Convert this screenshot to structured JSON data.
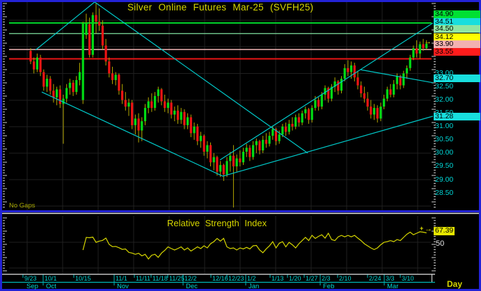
{
  "labels": {
    "no_gaps": "No Gaps",
    "day": "Day"
  },
  "colors": {
    "frame_blue": "#2323d6",
    "grid": "#202020",
    "cyan_line": "#00c8c8",
    "candle_up": "#00dc14",
    "candle_down": "#ee1414",
    "wick": "#b3a600",
    "rsi_line": "#d6d600",
    "axis_text": "#00d4d4",
    "separator_white": "#e6e6e6"
  },
  "chart_data": [
    {
      "type": "candlestick",
      "title": "Silver Online Futures Mar-25 (SVFH25)",
      "period": "Day",
      "y_range": [
        27.9,
        35.7
      ],
      "grid": true,
      "y_ticks": [
        {
          "label": "33.00",
          "value": 33.0
        },
        {
          "label": "32.50",
          "value": 32.5
        },
        {
          "label": "32.00",
          "value": 32.0
        },
        {
          "label": "31.50",
          "value": 31.5
        },
        {
          "label": "31.00",
          "value": 31.0
        },
        {
          "label": "30.50",
          "value": 30.5
        },
        {
          "label": "30.00",
          "value": 30.0
        },
        {
          "label": "29.50",
          "value": 29.5
        },
        {
          "label": "29.00",
          "value": 29.0
        },
        {
          "label": "28.50",
          "value": 28.5
        }
      ],
      "price_badges": [
        {
          "label": "34.90",
          "y": 20,
          "bg": "#00e033"
        },
        {
          "label": "34.51",
          "y": 31,
          "bg": "#18dede"
        },
        {
          "label": "34.50",
          "y": 41,
          "bg": "#8fe6a3"
        },
        {
          "label": "34.12",
          "y": 53,
          "bg": "#ffff00"
        },
        {
          "label": "33.90",
          "y": 63,
          "bg": "#f2b1b1"
        },
        {
          "label": "33.55",
          "y": 74,
          "bg": "#ff1c1c"
        },
        {
          "label": "32.70",
          "y": 112,
          "bg": "#18dede"
        },
        {
          "label": "31.28",
          "y": 167,
          "bg": "#18dede"
        }
      ],
      "h_lines": [
        {
          "price": 34.9,
          "color": "#00d22a",
          "w": 2
        },
        {
          "price": 34.5,
          "color": "#7fe3a0",
          "w": 1.2
        },
        {
          "price": 33.9,
          "color": "#f0b4b4",
          "w": 1.5
        },
        {
          "price": 33.55,
          "color": "#e81414",
          "w": 2
        }
      ],
      "trendlines": [
        {
          "x1": 51,
          "p1": 33.88,
          "x2": 136,
          "p2": 35.69
        },
        {
          "x1": 136,
          "p1": 35.69,
          "x2": 442,
          "p2": 30.0
        },
        {
          "x1": 60,
          "p1": 32.3,
          "x2": 320,
          "p2": 29.13
        },
        {
          "x1": 320,
          "p1": 29.13,
          "x2": 622,
          "p2": 31.39
        },
        {
          "x1": 316,
          "p1": 29.74,
          "x2": 622,
          "p2": 34.9
        },
        {
          "x1": 518,
          "p1": 33.14,
          "x2": 622,
          "p2": 32.65
        }
      ],
      "last_price": "34.12",
      "ohlc": [
        [
          33.85,
          33.95,
          33.35,
          33.45
        ],
        [
          33.45,
          33.6,
          33.0,
          33.15
        ],
        [
          33.15,
          33.75,
          33.05,
          33.6
        ],
        [
          33.6,
          33.7,
          32.9,
          33.05
        ],
        [
          33.05,
          33.15,
          32.35,
          32.5
        ],
        [
          32.5,
          32.95,
          32.3,
          32.8
        ],
        [
          32.8,
          32.9,
          32.2,
          32.35
        ],
        [
          32.35,
          32.6,
          31.9,
          32.1
        ],
        [
          32.1,
          32.5,
          31.8,
          32.4
        ],
        [
          32.4,
          32.55,
          31.7,
          31.85
        ],
        [
          31.85,
          32.2,
          30.35,
          32.05
        ],
        [
          32.05,
          32.6,
          31.9,
          32.45
        ],
        [
          32.45,
          32.8,
          32.2,
          32.65
        ],
        [
          32.65,
          32.75,
          32.15,
          32.3
        ],
        [
          32.3,
          32.9,
          32.2,
          32.75
        ],
        [
          32.75,
          33.4,
          32.55,
          33.05
        ],
        [
          32.0,
          34.95,
          31.85,
          34.9
        ],
        [
          34.45,
          35.25,
          34.3,
          34.9
        ],
        [
          34.85,
          35.1,
          33.6,
          33.7
        ],
        [
          33.7,
          35.3,
          33.6,
          35.2
        ],
        [
          35.2,
          35.65,
          34.5,
          34.95
        ],
        [
          34.95,
          35.45,
          34.6,
          34.8
        ],
        [
          34.8,
          35.0,
          33.9,
          34.05
        ],
        [
          34.05,
          34.3,
          33.3,
          33.45
        ],
        [
          33.45,
          33.6,
          32.85,
          33.0
        ],
        [
          33.0,
          33.25,
          32.6,
          32.75
        ],
        [
          32.75,
          33.05,
          32.55,
          32.95
        ],
        [
          32.95,
          33.0,
          32.2,
          32.35
        ],
        [
          32.35,
          32.6,
          31.85,
          32.0
        ],
        [
          32.0,
          32.3,
          31.6,
          31.75
        ],
        [
          31.75,
          32.05,
          31.4,
          31.9
        ],
        [
          31.9,
          32.0,
          30.9,
          31.05
        ],
        [
          31.05,
          31.45,
          30.7,
          31.3
        ],
        [
          31.3,
          31.5,
          30.4,
          30.85
        ],
        [
          30.85,
          31.35,
          30.45,
          31.2
        ],
        [
          31.2,
          31.85,
          31.05,
          31.7
        ],
        [
          31.7,
          32.1,
          31.5,
          31.95
        ],
        [
          31.95,
          32.25,
          31.55,
          31.7
        ],
        [
          31.7,
          32.3,
          31.6,
          32.15
        ],
        [
          32.15,
          32.5,
          31.9,
          32.4
        ],
        [
          32.4,
          32.45,
          31.8,
          31.95
        ],
        [
          31.95,
          32.2,
          31.55,
          31.7
        ],
        [
          31.7,
          32.05,
          31.5,
          31.9
        ],
        [
          31.9,
          32.0,
          31.3,
          31.45
        ],
        [
          31.45,
          31.75,
          31.2,
          31.6
        ],
        [
          31.6,
          31.8,
          31.1,
          31.25
        ],
        [
          31.25,
          31.7,
          31.1,
          31.55
        ],
        [
          31.55,
          31.65,
          30.9,
          31.05
        ],
        [
          31.05,
          31.5,
          30.9,
          31.35
        ],
        [
          31.35,
          31.45,
          30.6,
          30.75
        ],
        [
          30.75,
          31.15,
          30.5,
          31.0
        ],
        [
          31.0,
          31.1,
          30.3,
          30.45
        ],
        [
          30.45,
          30.8,
          30.2,
          30.65
        ],
        [
          30.65,
          30.7,
          29.9,
          30.05
        ],
        [
          30.05,
          30.45,
          29.8,
          30.3
        ],
        [
          30.3,
          30.4,
          29.5,
          29.65
        ],
        [
          29.65,
          30.0,
          29.35,
          29.85
        ],
        [
          29.85,
          29.9,
          29.15,
          29.3
        ],
        [
          29.3,
          29.7,
          29.1,
          29.55
        ],
        [
          29.55,
          29.6,
          28.95,
          29.2
        ],
        [
          29.2,
          29.85,
          29.1,
          29.7
        ],
        [
          29.7,
          30.05,
          29.3,
          29.9
        ],
        [
          29.9,
          30.3,
          27.95,
          29.5
        ],
        [
          29.5,
          29.95,
          29.3,
          29.8
        ],
        [
          29.8,
          30.1,
          29.5,
          29.65
        ],
        [
          29.65,
          30.2,
          29.55,
          30.05
        ],
        [
          30.05,
          30.35,
          29.85,
          30.2
        ],
        [
          30.2,
          30.3,
          29.7,
          29.85
        ],
        [
          29.85,
          30.45,
          29.75,
          30.3
        ],
        [
          30.3,
          30.55,
          30.0,
          30.45
        ],
        [
          30.45,
          30.5,
          29.95,
          30.1
        ],
        [
          30.1,
          30.65,
          30.0,
          30.5
        ],
        [
          30.5,
          30.75,
          30.2,
          30.35
        ],
        [
          30.35,
          30.8,
          30.25,
          30.65
        ],
        [
          30.65,
          31.0,
          30.5,
          30.9
        ],
        [
          30.9,
          30.95,
          30.3,
          30.45
        ],
        [
          30.45,
          30.85,
          30.35,
          30.7
        ],
        [
          30.7,
          31.1,
          30.6,
          31.0
        ],
        [
          31.0,
          31.15,
          30.65,
          30.8
        ],
        [
          30.8,
          31.25,
          30.7,
          31.1
        ],
        [
          31.1,
          31.35,
          30.85,
          31.0
        ],
        [
          31.0,
          31.45,
          30.9,
          31.35
        ],
        [
          31.35,
          31.5,
          31.0,
          31.15
        ],
        [
          31.15,
          31.6,
          31.05,
          31.5
        ],
        [
          31.5,
          31.75,
          31.3,
          31.65
        ],
        [
          31.65,
          31.7,
          31.1,
          31.25
        ],
        [
          31.25,
          31.8,
          31.15,
          31.7
        ],
        [
          31.7,
          32.15,
          31.6,
          32.0
        ],
        [
          32.0,
          32.1,
          31.6,
          31.75
        ],
        [
          31.75,
          32.3,
          31.65,
          32.2
        ],
        [
          32.2,
          32.55,
          32.0,
          32.45
        ],
        [
          32.45,
          32.5,
          31.9,
          32.05
        ],
        [
          32.05,
          32.6,
          31.95,
          32.5
        ],
        [
          32.5,
          32.85,
          32.3,
          32.7
        ],
        [
          32.7,
          32.75,
          32.2,
          32.35
        ],
        [
          32.35,
          32.9,
          32.25,
          32.8
        ],
        [
          32.8,
          33.35,
          32.7,
          33.2
        ],
        [
          33.2,
          33.5,
          32.9,
          33.05
        ],
        [
          33.05,
          33.45,
          32.8,
          33.3
        ],
        [
          33.3,
          33.4,
          32.7,
          32.85
        ],
        [
          32.85,
          33.1,
          32.4,
          32.55
        ],
        [
          32.55,
          32.7,
          32.1,
          32.25
        ],
        [
          32.25,
          32.5,
          31.9,
          32.05
        ],
        [
          32.05,
          32.3,
          31.6,
          31.75
        ],
        [
          31.75,
          32.0,
          31.3,
          31.45
        ],
        [
          31.45,
          31.85,
          31.25,
          31.7
        ],
        [
          31.7,
          31.8,
          31.15,
          31.3
        ],
        [
          31.3,
          31.9,
          31.2,
          31.75
        ],
        [
          31.75,
          32.2,
          31.65,
          32.05
        ],
        [
          32.05,
          32.5,
          31.95,
          32.4
        ],
        [
          32.4,
          32.6,
          32.1,
          32.2
        ],
        [
          32.2,
          32.75,
          32.1,
          32.6
        ],
        [
          32.6,
          33.0,
          32.4,
          32.9
        ],
        [
          32.9,
          32.95,
          32.4,
          32.55
        ],
        [
          32.55,
          33.1,
          32.45,
          33.0
        ],
        [
          33.0,
          33.3,
          32.8,
          33.2
        ],
        [
          33.2,
          33.7,
          33.1,
          33.6
        ],
        [
          33.6,
          34.05,
          33.5,
          33.95
        ],
        [
          33.95,
          34.25,
          33.6,
          33.75
        ],
        [
          33.75,
          34.2,
          33.55,
          34.1
        ],
        [
          34.1,
          34.3,
          33.85,
          33.95
        ],
        [
          33.95,
          34.25,
          33.9,
          34.12
        ]
      ],
      "x_axis": {
        "date_ticks": [
          {
            "t": "9/23",
            "x": 33
          },
          {
            "t": "10/1",
            "x": 62
          },
          {
            "t": "10/15",
            "x": 106
          },
          {
            "t": "11/1",
            "x": 164
          },
          {
            "t": "11/11",
            "x": 193
          },
          {
            "t": "11/18",
            "x": 217
          },
          {
            "t": "11/25",
            "x": 241
          },
          {
            "t": "12/2",
            "x": 263
          },
          {
            "t": "12/16",
            "x": 303
          },
          {
            "t": "12/23",
            "x": 326
          },
          {
            "t": "1/2",
            "x": 353
          },
          {
            "t": "1/13",
            "x": 388
          },
          {
            "t": "1/20",
            "x": 413
          },
          {
            "t": "1/27",
            "x": 437
          },
          {
            "t": "2/3",
            "x": 460
          },
          {
            "t": "2/10",
            "x": 485
          },
          {
            "t": "2/24",
            "x": 528
          },
          {
            "t": "3/3",
            "x": 552
          },
          {
            "t": "3/10",
            "x": 575
          }
        ],
        "months": [
          {
            "t": "Sep",
            "x": 38
          },
          {
            "t": "Oct",
            "x": 66
          },
          {
            "t": "Nov",
            "x": 168
          },
          {
            "t": "Dec",
            "x": 267
          },
          {
            "t": "Jan",
            "x": 357
          },
          {
            "t": "Feb",
            "x": 464
          },
          {
            "t": "Mar",
            "x": 556
          }
        ],
        "boundaries": [
          62,
          164,
          263,
          353,
          460,
          552
        ]
      },
      "annotation": "No Gaps"
    },
    {
      "type": "line",
      "name": "RSI",
      "title": "Relative Strength Index",
      "level": 50,
      "level_label": "50",
      "last_value": 67.39,
      "last_value_label": "67.39",
      "start_bar": 16,
      "values": [
        41.5,
        60.5,
        60.0,
        61.0,
        53.0,
        55.0,
        56.0,
        59.5,
        50.0,
        46.5,
        46.8,
        45.0,
        42.4,
        43.0,
        38.0,
        36.7,
        35.0,
        36.5,
        32.6,
        35.0,
        27.9,
        33.6,
        35.0,
        30.3,
        36.7,
        41.0,
        46.2,
        43.7,
        41.5,
        43.7,
        46.2,
        41.5,
        44.6,
        39.9,
        43.0,
        46.2,
        43.7,
        47.8,
        44.6,
        51.0,
        54.1,
        58.9,
        55.0,
        59.0,
        46.2,
        43.7,
        44.6,
        41.5,
        44.6,
        43.0,
        45.5,
        43.0,
        47.8,
        48.4,
        41.5,
        37.4,
        43.0,
        47.8,
        54.1,
        44.6,
        51.7,
        54.1,
        46.2,
        53.1,
        49.4,
        44.6,
        51.0,
        55.7,
        60.5,
        55.7,
        63.6,
        58.9,
        62.1,
        64.5,
        59.5,
        66.8,
        57.3,
        55.7,
        61.4,
        63.6,
        61.4,
        63.6,
        61.4,
        63.6,
        59.5,
        55.7,
        51.0,
        47.8,
        44.6,
        42.1,
        44.6,
        49.4,
        53.1,
        54.1,
        55.7,
        54.1,
        57.3,
        55.7,
        60.5,
        65.3,
        68.4,
        64.5,
        66.8,
        69.0,
        68.4,
        67.39
      ]
    }
  ]
}
